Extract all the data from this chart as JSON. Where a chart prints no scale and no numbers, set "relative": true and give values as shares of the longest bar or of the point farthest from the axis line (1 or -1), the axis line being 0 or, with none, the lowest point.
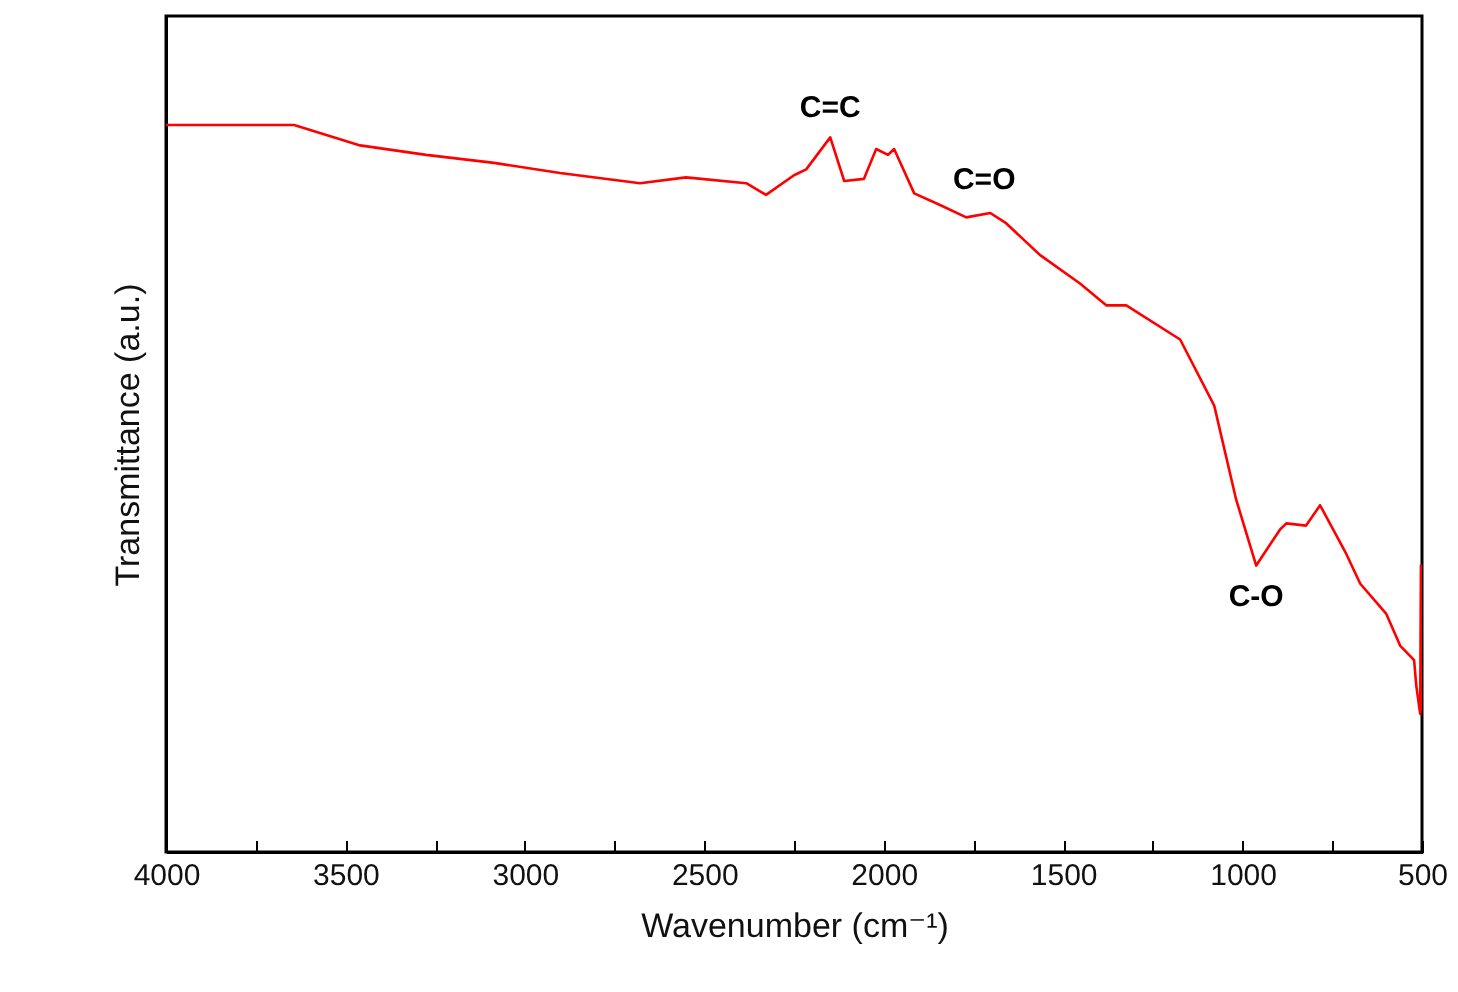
{
  "chart_data": {
    "type": "line",
    "relative": true,
    "xlabel": "Wavenumber (cm⁻¹)",
    "ylabel": "Transmittance (a.u.)",
    "xlim": [
      4000,
      500
    ],
    "xticks": [
      4000,
      {
        "value": 3750,
        "label": null
      },
      3500,
      {
        "value": 3250,
        "label": null
      },
      3000,
      {
        "value": 2750,
        "label": null
      },
      2500,
      {
        "value": 2250,
        "label": null
      },
      2000,
      {
        "value": 1750,
        "label": null
      },
      1500,
      {
        "value": 1250,
        "label": null
      },
      1000,
      {
        "value": 750,
        "label": null
      },
      500
    ],
    "grid": false,
    "marker": "none",
    "line_style": "solid",
    "tick_labels": "x",
    "annotations": [
      {
        "text": "C=C",
        "x": 2149,
        "y": 0.983
      },
      {
        "text": "C=O",
        "x": 1720,
        "y": 0.879
      },
      {
        "text": "C-O",
        "x": 962,
        "y": 0.394
      }
    ],
    "series": [
      {
        "color": "#ff0000",
        "x": [
          4000,
          3833,
          3643,
          3459,
          3275,
          3086,
          2902,
          2679,
          2551,
          2383,
          2328,
          2250,
          2216,
          2149,
          2110,
          2055,
          2021,
          1988,
          1971,
          1915,
          1843,
          1770,
          1703,
          1659,
          1564,
          1453,
          1380,
          1324,
          1174,
          1079,
          1018,
          962,
          895,
          878,
          823,
          784,
          711,
          672,
          600,
          561,
          522,
          516,
          505,
          503,
          500
        ],
        "values": [
          1.0,
          1.0,
          1.0,
          0.972,
          0.959,
          0.948,
          0.934,
          0.92,
          0.928,
          0.92,
          0.904,
          0.931,
          0.939,
          0.983,
          0.923,
          0.926,
          0.967,
          0.959,
          0.967,
          0.906,
          0.89,
          0.873,
          0.879,
          0.865,
          0.821,
          0.782,
          0.752,
          0.752,
          0.705,
          0.614,
          0.485,
          0.394,
          0.444,
          0.452,
          0.449,
          0.477,
          0.41,
          0.369,
          0.328,
          0.284,
          0.264,
          0.229,
          0.19,
          0.394,
          0.196
        ]
      }
    ]
  }
}
